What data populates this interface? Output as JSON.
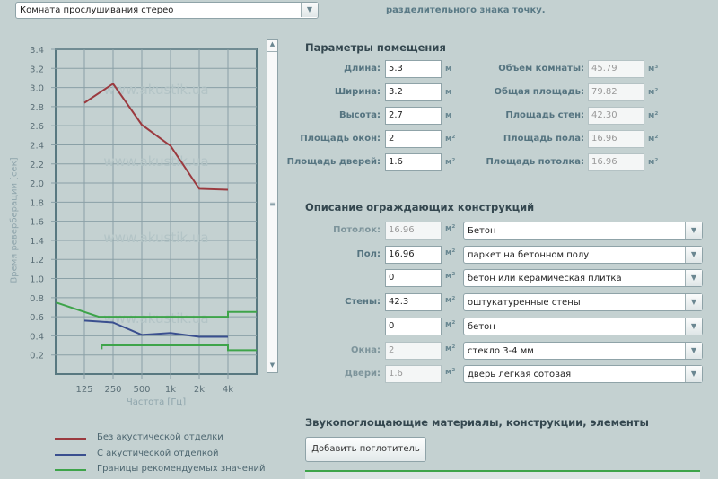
{
  "preset": {
    "value": "Комната прослушивания стерео"
  },
  "note": "разделительного знака точку.",
  "params": {
    "title": "Параметры помещения",
    "left": [
      {
        "label": "Длина:",
        "value": "5.3",
        "unit": "м"
      },
      {
        "label": "Ширина:",
        "value": "3.2",
        "unit": "м"
      },
      {
        "label": "Высота:",
        "value": "2.7",
        "unit": "м"
      },
      {
        "label": "Площадь окон:",
        "value": "2",
        "unit": "м²"
      },
      {
        "label": "Площадь дверей:",
        "value": "1.6",
        "unit": "м²"
      }
    ],
    "right": [
      {
        "label": "Объем комнаты:",
        "value": "45.79",
        "unit": "м³"
      },
      {
        "label": "Общая площадь:",
        "value": "79.82",
        "unit": "м²"
      },
      {
        "label": "Площадь стен:",
        "value": "42.30",
        "unit": "м²"
      },
      {
        "label": "Площадь пола:",
        "value": "16.96",
        "unit": "м²"
      },
      {
        "label": "Площадь потолка:",
        "value": "16.96",
        "unit": "м²"
      }
    ]
  },
  "constructions": {
    "title": "Описание ограждающих конструкций",
    "rows": [
      {
        "label": "Потолок:",
        "value": "16.96",
        "unit": "м²",
        "material": "Бетон",
        "readonly": true
      },
      {
        "label": "Пол:",
        "value": "16.96",
        "unit": "м²",
        "material": "паркет на бетонном полу",
        "readonly": false
      },
      {
        "label": "",
        "value": "0",
        "unit": "м²",
        "material": "бетон или керамическая плитка",
        "readonly": false
      },
      {
        "label": "Стены:",
        "value": "42.3",
        "unit": "м²",
        "material": "оштукатуренные стены",
        "readonly": false
      },
      {
        "label": "",
        "value": "0",
        "unit": "м²",
        "material": "бетон",
        "readonly": false
      },
      {
        "label": "Окна:",
        "value": "2",
        "unit": "м²",
        "material": "стекло 3-4 мм",
        "readonly": true
      },
      {
        "label": "Двери:",
        "value": "1.6",
        "unit": "м²",
        "material": "дверь легкая сотовая",
        "readonly": true
      }
    ]
  },
  "absorbers": {
    "title": "Звукопоглощающие материалы, конструкции, элементы",
    "add_button": "Добавить поглотитель"
  },
  "watermark": "www.akustik.ua",
  "chart_data": {
    "type": "line",
    "xlabel": "Частота [Гц]",
    "ylabel": "Время реверберации [сек]",
    "categories": [
      "125",
      "250",
      "500",
      "1k",
      "2k",
      "4k"
    ],
    "ylim": [
      0,
      3.4
    ],
    "yticks": [
      "3.4",
      "3.2",
      "3.0",
      "2.8",
      "2.6",
      "2.4",
      "2.2",
      "2.0",
      "1.8",
      "1.6",
      "1.4",
      "1.2",
      "1.0",
      "0.8",
      "0.6",
      "0.4",
      "0.2"
    ],
    "grid": true,
    "legend_position": "bottom",
    "series": [
      {
        "name": "Без акустической отделки",
        "color": "#9b3a3f",
        "values": [
          2.84,
          3.04,
          2.61,
          2.39,
          1.94,
          1.93
        ]
      },
      {
        "name": "С акустической отделкой",
        "color": "#3a4f8f",
        "values": [
          0.56,
          0.54,
          0.41,
          0.43,
          0.39,
          0.39
        ]
      },
      {
        "name": "Границы рекомендуемых значений",
        "color": "#3ea44a",
        "upper": [
          [
            63,
            0.75
          ],
          [
            177,
            0.6
          ],
          [
            4000,
            0.6
          ],
          [
            4000,
            0.65
          ],
          [
            8000,
            0.65
          ]
        ],
        "lower": [
          [
            190,
            0.26
          ],
          [
            190,
            0.3
          ],
          [
            4000,
            0.3
          ],
          [
            4000,
            0.25
          ],
          [
            8000,
            0.25
          ]
        ]
      }
    ]
  }
}
